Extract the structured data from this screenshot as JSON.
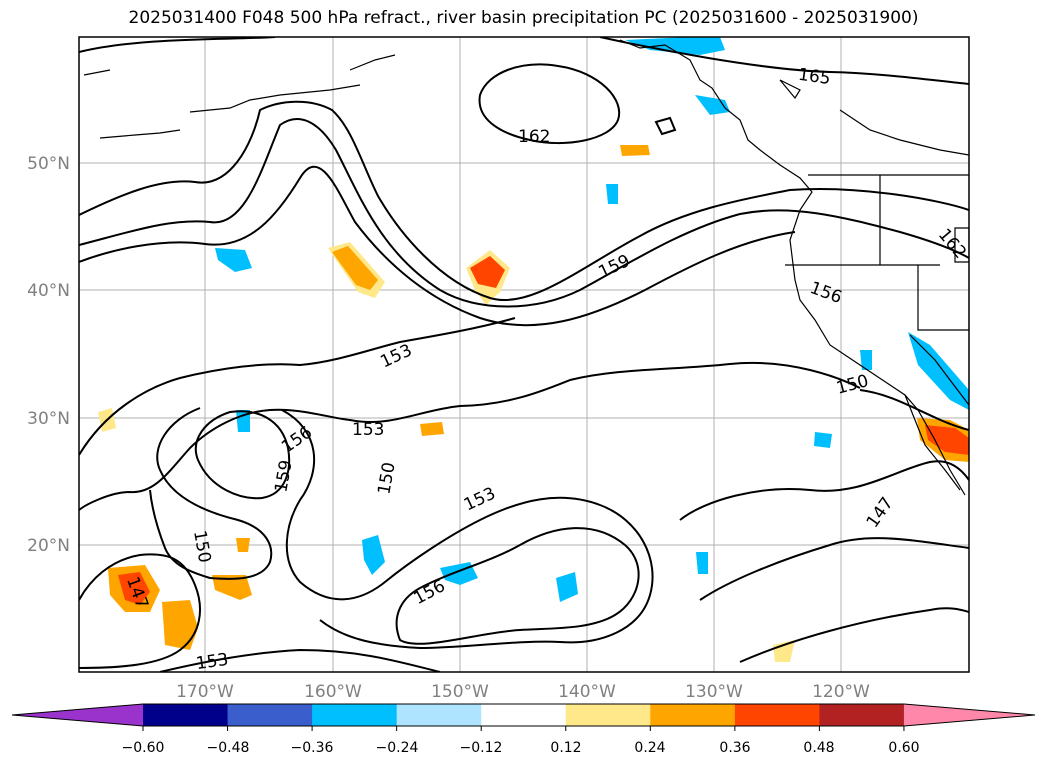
{
  "title": "2025031400 F048 500 hPa refract., river basin precipitation PC (2025031600 - 2025031900)",
  "lat_labels": [
    "50°N",
    "40°N",
    "30°N",
    "20°N"
  ],
  "lon_labels": [
    "170°W",
    "160°W",
    "150°W",
    "140°W",
    "130°W",
    "120°W"
  ],
  "contour_labels": [
    "165",
    "162",
    "159",
    "162",
    "156",
    "153",
    "150",
    "156",
    "153",
    "159",
    "150",
    "153",
    "150",
    "156",
    "147",
    "147",
    "153"
  ],
  "colorbar": {
    "ticks": [
      "−0.60",
      "−0.48",
      "−0.36",
      "−0.24",
      "−0.12",
      "0.12",
      "0.24",
      "0.36",
      "0.48",
      "0.60"
    ],
    "colors": [
      "#9933cc",
      "#00008b",
      "#3a5fcd",
      "#00bfff",
      "#aee4ff",
      "#ffffff",
      "#ffe88a",
      "#ffa500",
      "#ff4500",
      "#b22222",
      "#ff88aa"
    ]
  }
}
